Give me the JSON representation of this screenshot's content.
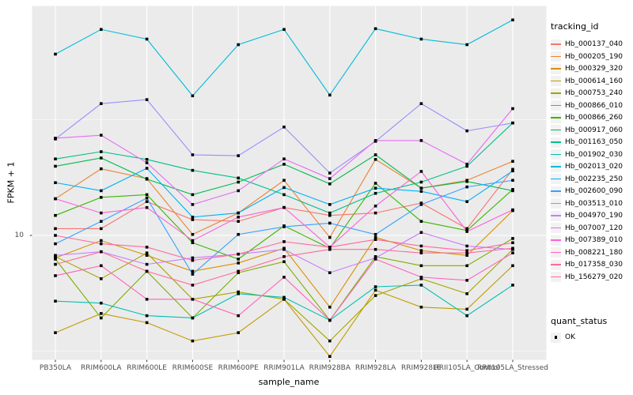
{
  "chart_data": {
    "type": "line",
    "title": "",
    "xlabel": "sample_name",
    "ylabel": "FPKM + 1",
    "y_scale": "log10",
    "y_ticks": [
      10
    ],
    "y_tick_labels": [
      "10"
    ],
    "grid": "major-and-minor, white on gray panel",
    "legend_position": "right",
    "legend_title": "tracking_id",
    "legend2_title": "quant_status",
    "legend2_items": [
      "OK"
    ],
    "panel_bg": "#EBEBEB",
    "key_bg": "#F2F2F2",
    "point_color": "#000000",
    "tick_label_color": "#4D4D4D",
    "x_categories": [
      "PB350LA",
      "RRIM600LA",
      "RRIM600LE",
      "RRIM600SE",
      "RRIM600PE",
      "RRIM901LA",
      "RRIM928BA",
      "RRIM928LA",
      "RRIM928LE",
      "RRII105LA_Control",
      "RRII105LA_Stressed"
    ],
    "series": [
      {
        "name": "Hb_000137_040",
        "color": "#F8766D",
        "values": [
          10.7,
          10.7,
          14.0,
          11.7,
          11.5,
          13.2,
          12.2,
          12.5,
          13.8,
          10.7,
          19.3
        ]
      },
      {
        "name": "Hb_000205_190",
        "color": "#EA8331",
        "values": [
          14.4,
          19.4,
          17.6,
          10.1,
          12.5,
          17.3,
          9.8,
          21.3,
          16.0,
          17.3,
          20.9
        ]
      },
      {
        "name": "Hb_000329_320",
        "color": "#D89000",
        "values": [
          8.0,
          9.5,
          8.2,
          7.0,
          7.6,
          8.8,
          4.9,
          9.8,
          8.6,
          8.2,
          12.8
        ]
      },
      {
        "name": "Hb_000614_160",
        "color": "#C09B00",
        "values": [
          3.8,
          4.6,
          4.2,
          3.5,
          3.8,
          5.3,
          3.0,
          5.8,
          4.9,
          4.8,
          7.4
        ]
      },
      {
        "name": "Hb_000753_240",
        "color": "#A3A500",
        "values": [
          8.1,
          6.5,
          8.4,
          5.3,
          5.7,
          5.3,
          3.5,
          5.5,
          6.5,
          5.6,
          8.7
        ]
      },
      {
        "name": "Hb_000866_010",
        "color": "#7CAE00",
        "values": [
          7.9,
          4.4,
          7.0,
          4.4,
          6.9,
          7.7,
          4.3,
          8.1,
          7.4,
          7.4,
          9.7
        ]
      },
      {
        "name": "Hb_000866_260",
        "color": "#39B600",
        "values": [
          12.2,
          14.6,
          15.0,
          9.3,
          7.9,
          11.0,
          8.8,
          16.8,
          11.5,
          10.5,
          15.8
        ]
      },
      {
        "name": "Hb_000917_060",
        "color": "#00BB4E",
        "values": [
          19.9,
          21.6,
          17.5,
          15.0,
          17.0,
          20.3,
          16.7,
          22.3,
          16.0,
          17.1,
          15.6
        ]
      },
      {
        "name": "Hb_001163_050",
        "color": "#00C087",
        "values": [
          21.4,
          23.0,
          21.3,
          19.1,
          17.7,
          15.0,
          12.5,
          15.2,
          17.0,
          19.9,
          30.6
        ]
      },
      {
        "name": "Hb_001902_030",
        "color": "#00C0B2",
        "values": [
          5.2,
          5.1,
          4.5,
          4.4,
          5.6,
          5.4,
          4.3,
          6.0,
          6.1,
          4.5,
          6.1
        ]
      },
      {
        "name": "Hb_002013_020",
        "color": "#00BCD8",
        "values": [
          60.7,
          77.6,
          70.5,
          40.1,
          66.7,
          77.6,
          40.4,
          78.2,
          70.5,
          66.7,
          85.3
        ]
      },
      {
        "name": "Hb_002235_250",
        "color": "#00B0F6",
        "values": [
          16.9,
          15.6,
          19.5,
          12.0,
          12.5,
          16.1,
          13.6,
          16.0,
          15.5,
          14.0,
          19.0
        ]
      },
      {
        "name": "Hb_002600_090",
        "color": "#35A2FF",
        "values": [
          9.2,
          11.5,
          14.5,
          6.8,
          10.1,
          10.9,
          11.3,
          10.1,
          13.6,
          16.2,
          17.3
        ]
      },
      {
        "name": "Hb_003513_010",
        "color": "#9590FF",
        "values": [
          26.1,
          37.1,
          38.6,
          22.3,
          22.1,
          29.4,
          18.6,
          25.5,
          37.1,
          28.3,
          30.6
        ]
      },
      {
        "name": "Hb_004970_190",
        "color": "#C77CFF",
        "values": [
          8.2,
          8.5,
          7.5,
          8.0,
          8.3,
          8.7,
          6.9,
          8.0,
          10.3,
          9.0,
          8.7
        ]
      },
      {
        "name": "Hb_007007_120",
        "color": "#E76BF3",
        "values": [
          26.3,
          27.1,
          20.6,
          13.6,
          15.6,
          21.4,
          17.6,
          25.7,
          25.7,
          20.3,
          35.3
        ]
      },
      {
        "name": "Hb_007389_010",
        "color": "#FA62DB",
        "values": [
          14.4,
          12.5,
          13.2,
          9.5,
          12.0,
          13.2,
          8.9,
          13.4,
          18.9,
          10.4,
          12.9
        ]
      },
      {
        "name": "Hb_008221_180",
        "color": "#FF62BC",
        "values": [
          6.7,
          7.4,
          5.3,
          5.3,
          4.5,
          6.6,
          4.3,
          7.9,
          6.6,
          6.4,
          8.4
        ]
      },
      {
        "name": "Hb_017358_030",
        "color": "#FF6A98",
        "values": [
          7.5,
          8.5,
          7.0,
          6.1,
          7.0,
          8.1,
          8.7,
          8.7,
          8.4,
          8.4,
          8.8
        ]
      },
      {
        "name": "Hb_156279_020",
        "color": "#FF689F",
        "values": [
          10.0,
          9.2,
          8.9,
          7.8,
          8.3,
          9.4,
          8.9,
          9.6,
          9.0,
          8.6,
          9.3
        ]
      }
    ]
  }
}
